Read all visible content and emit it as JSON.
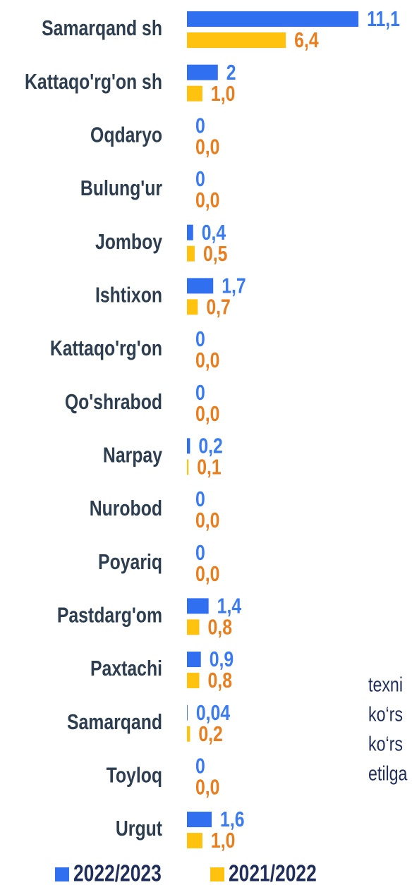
{
  "chart_data": {
    "type": "bar",
    "orientation": "horizontal",
    "categories": [
      "Samarqand sh",
      "Kattaqo'rg'on sh",
      "Oqdaryo",
      "Bulung'ur",
      "Jomboy",
      "Ishtixon",
      "Kattaqo'rg'on",
      "Qo'shrabod",
      "Narpay",
      "Nurobod",
      "Poyariq",
      "Pastdarg'om",
      "Paxtachi",
      "Samarqand",
      "Toyloq",
      "Urgut"
    ],
    "series": [
      {
        "name": "2022/2023",
        "color": "#2f6ff0",
        "values": [
          11.1,
          2,
          0,
          0,
          0.4,
          1.7,
          0,
          0,
          0.2,
          0,
          0,
          1.4,
          0.9,
          0.04,
          0,
          1.6
        ],
        "value_labels": [
          "11,1",
          "2",
          "0",
          "0",
          "0,4",
          "1,7",
          "0",
          "0",
          "0,2",
          "0",
          "0",
          "1,4",
          "0,9",
          "0,04",
          "0",
          "1,6"
        ],
        "label_color": "#3a7bf0"
      },
      {
        "name": "2021/2022",
        "color": "#ffc20e",
        "values": [
          6.4,
          1.0,
          0,
          0,
          0.5,
          0.7,
          0,
          0,
          0.1,
          0,
          0,
          0.8,
          0.8,
          0.2,
          0,
          1.0
        ],
        "value_labels": [
          "6,4",
          "1,0",
          "0,0",
          "0,0",
          "0,5",
          "0,7",
          "0,0",
          "0,0",
          "0,1",
          "0,0",
          "0,0",
          "0,8",
          "0,8",
          "0,2",
          "0,0",
          "1,0"
        ],
        "label_color": "#e87e1e"
      }
    ]
  },
  "side_text": [
    "texni",
    "ko‘rs",
    "ko‘rs",
    "etilga"
  ]
}
